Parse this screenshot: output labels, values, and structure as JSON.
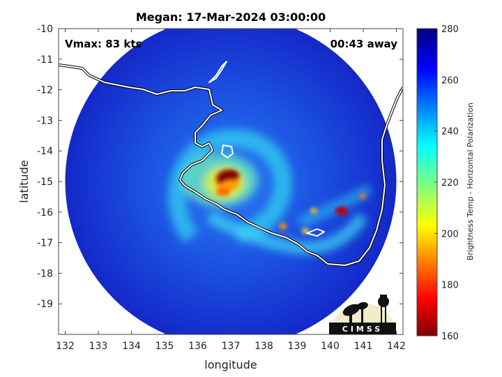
{
  "chart_data": {
    "type": "heatmap",
    "title": "Megan: 17-Mar-2024 03:00:00",
    "xlabel": "longitude",
    "ylabel": "latitude",
    "xlim": [
      131.8,
      142.2
    ],
    "ylim": [
      -20,
      -10
    ],
    "y_reversed": true,
    "x_ticks": [
      132,
      133,
      134,
      135,
      136,
      137,
      138,
      139,
      140,
      141,
      142
    ],
    "y_ticks": [
      -10,
      -11,
      -12,
      -13,
      -14,
      -15,
      -16,
      -17,
      -18,
      -19
    ],
    "annotations": {
      "vmax": "Vmax: 83 kts",
      "time_offset": "00:43 away"
    },
    "swath": {
      "center_lon": 137.0,
      "center_lat": -15.0,
      "radius_deg": 5.0
    },
    "storm_center": {
      "lon": 136.9,
      "lat": -14.95
    },
    "colorbar": {
      "label": "Brightness Temp - Horizontal Polarization",
      "min": 160,
      "max": 280,
      "ticks": [
        160,
        180,
        200,
        220,
        240,
        260,
        280
      ],
      "colormap": "jet-reversed"
    },
    "features": [
      {
        "name": "eyewall",
        "lon": 136.95,
        "lat": -14.8,
        "value": 168
      },
      {
        "name": "inner-rainband-south",
        "lon": 136.8,
        "lat": -15.2,
        "value": 205
      },
      {
        "name": "convective-cell-east-1",
        "lon": 140.4,
        "lat": -15.9,
        "value": 192
      },
      {
        "name": "convective-cell-east-2",
        "lon": 140.8,
        "lat": -15.4,
        "value": 205
      },
      {
        "name": "convective-cell-southeast",
        "lon": 138.6,
        "lat": -16.4,
        "value": 215
      }
    ],
    "logo": "CIMSS"
  }
}
